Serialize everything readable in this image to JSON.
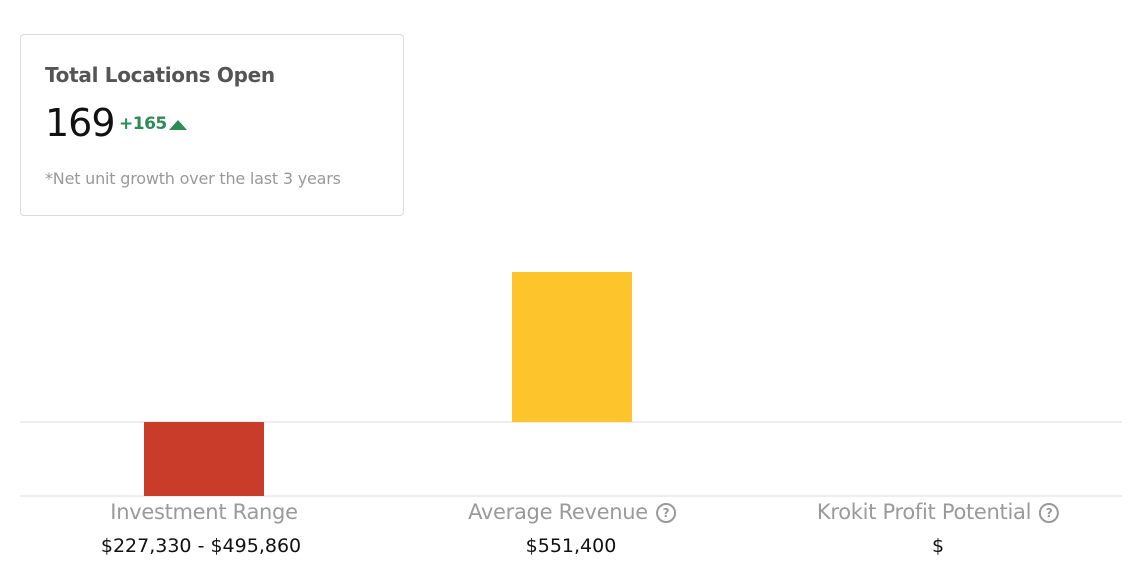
{
  "card": {
    "title": "Total Locations Open",
    "value": "169",
    "change": "+165",
    "note": "*Net unit growth over the last 3 years"
  },
  "metrics": [
    {
      "label": "Investment Range",
      "value": "$227,330 - $495,860"
    },
    {
      "label": "Average Revenue",
      "value": "$551,400"
    },
    {
      "label": "Krokit Profit Potential",
      "value": "$"
    }
  ]
}
